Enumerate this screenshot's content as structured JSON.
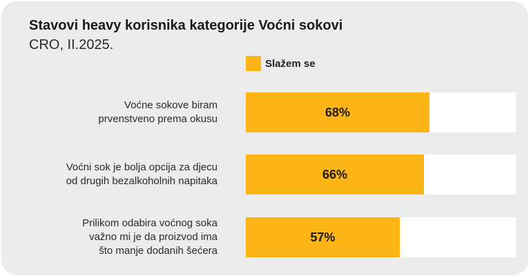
{
  "title": "Stavovi heavy korisnika kategorije Voćni sokovi",
  "subtitle": "CRO, II.2025.",
  "colors": {
    "bar": "#FDB515",
    "track": "#FFFFFF",
    "background": "#ECECEC"
  },
  "chart_data": {
    "type": "bar",
    "orientation": "horizontal",
    "categories": [
      "Voćne sokove biram prvenstveno prema okusu",
      "Voćni sok je bolja opcija za djecu od drugih bezalkoholnih napitaka",
      "Prilikom odabira voćnog soka važno mi je da proizvod ima što manje dodanih šećera"
    ],
    "category_lines": [
      [
        "Voćne sokove biram",
        "prvenstveno prema okusu"
      ],
      [
        "Voćni sok je bolja opcija za djecu",
        "od drugih bezalkoholnih napitaka"
      ],
      [
        "Prilikom odabira voćnog soka",
        "važno mi je da proizvod ima",
        "što manje dodanih šećera"
      ]
    ],
    "series": [
      {
        "name": "Slažem se",
        "values": [
          68,
          66,
          57
        ]
      }
    ],
    "value_labels": [
      "68%",
      "66%",
      "57%"
    ],
    "xlim": [
      0,
      100
    ],
    "legend": "top"
  }
}
